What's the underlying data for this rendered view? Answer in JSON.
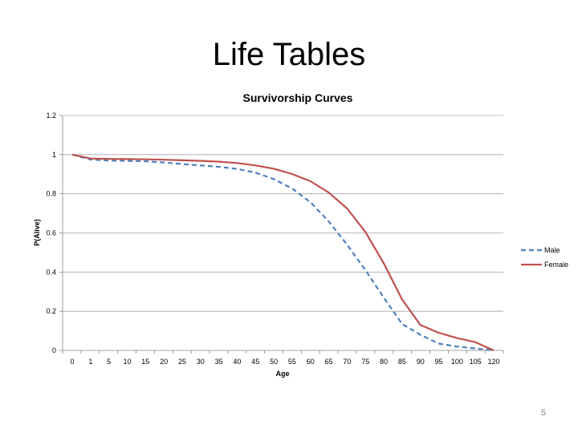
{
  "slide": {
    "title": "Life Tables",
    "page_number": "5"
  },
  "chart_data": {
    "type": "line",
    "title": "Survivorship Curves",
    "xlabel": "Age",
    "ylabel": "P(Alive)",
    "categories": [
      "0",
      "1",
      "5",
      "10",
      "15",
      "20",
      "25",
      "30",
      "35",
      "40",
      "45",
      "50",
      "55",
      "60",
      "65",
      "70",
      "75",
      "80",
      "85",
      "90",
      "95",
      "100",
      "105",
      "120"
    ],
    "ylim": [
      0,
      1.2
    ],
    "yticks": [
      "0",
      "0.2",
      "0.4",
      "0.6",
      "0.8",
      "1",
      "1.2"
    ],
    "grid": true,
    "legend_position": "right",
    "series": [
      {
        "name": "Male",
        "color": "#4f81bd",
        "dash": "dashed",
        "values": [
          1.0,
          0.975,
          0.97,
          0.968,
          0.966,
          0.96,
          0.952,
          0.945,
          0.938,
          0.927,
          0.908,
          0.875,
          0.827,
          0.757,
          0.658,
          0.54,
          0.41,
          0.27,
          0.135,
          0.08,
          0.035,
          0.02,
          0.01,
          0.0
        ]
      },
      {
        "name": "Female",
        "color": "#c0504d",
        "dash": "solid",
        "values": [
          1.0,
          0.98,
          0.978,
          0.977,
          0.976,
          0.974,
          0.971,
          0.968,
          0.964,
          0.957,
          0.945,
          0.928,
          0.901,
          0.864,
          0.806,
          0.725,
          0.605,
          0.445,
          0.26,
          0.13,
          0.09,
          0.063,
          0.042,
          0.0
        ]
      }
    ]
  }
}
